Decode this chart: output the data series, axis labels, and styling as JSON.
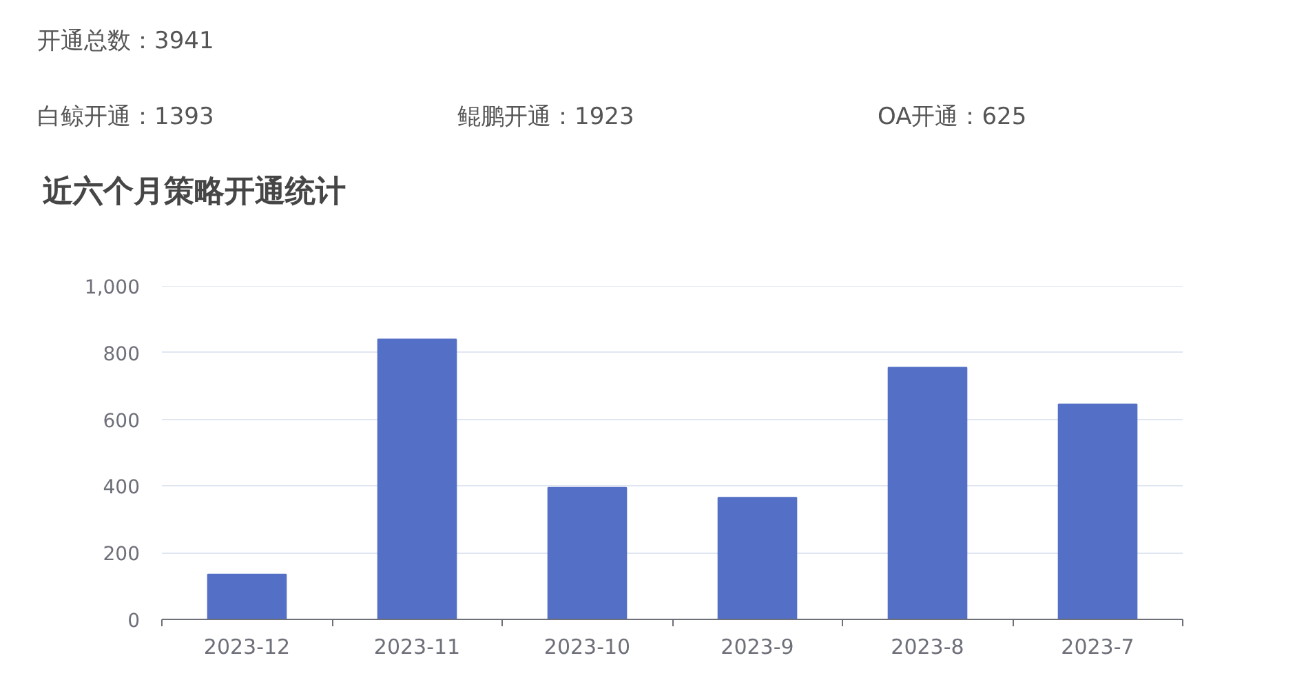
{
  "chart_data": {
    "type": "bar",
    "title": "近六个月策略开通统计",
    "subtitle": "开通总数：3941",
    "annotations": [
      "白鲸开通：1393",
      "鲲鹏开通：1923",
      "OA开通：625"
    ],
    "categories": [
      "2023-12",
      "2023-11",
      "2023-10",
      "2023-9",
      "2023-8",
      "2023-7"
    ],
    "values": [
      135,
      840,
      395,
      365,
      755,
      645
    ],
    "color": "#5470c6",
    "ylim": [
      0,
      1000
    ],
    "yticks": [
      0,
      200,
      400,
      600,
      800,
      {
        "value": 1000,
        "label": "1,000"
      }
    ],
    "grid": "y"
  }
}
